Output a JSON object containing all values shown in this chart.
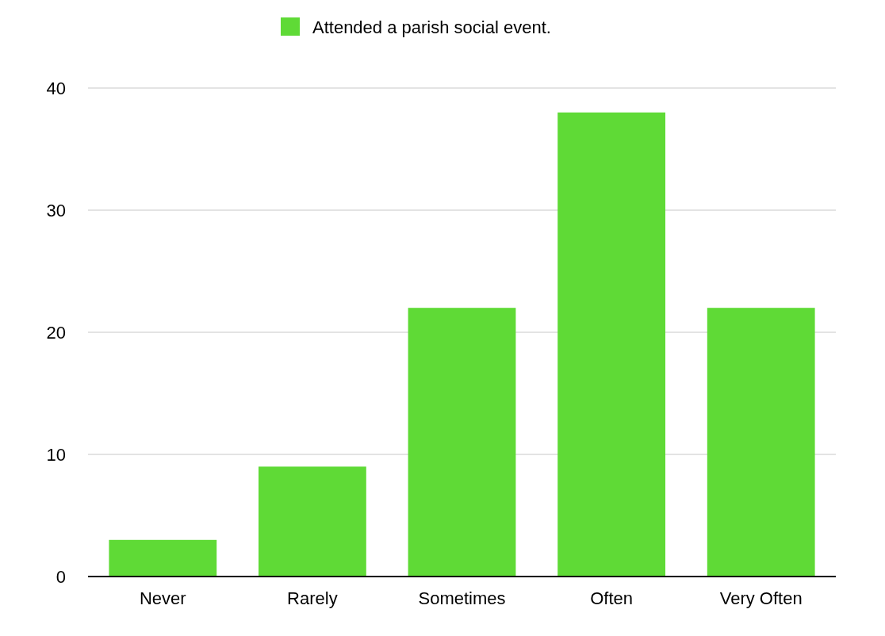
{
  "chart_data": {
    "type": "bar",
    "categories": [
      "Never",
      "Rarely",
      "Sometimes",
      "Often",
      "Very Often"
    ],
    "series": [
      {
        "name": "Attended a parish social event.",
        "color": "#5fda36",
        "values": [
          3,
          9,
          22,
          38,
          22
        ]
      }
    ],
    "ylim": [
      0,
      40
    ],
    "yticks": [
      0,
      10,
      20,
      30,
      40
    ],
    "grid": "y",
    "legend": "top"
  }
}
